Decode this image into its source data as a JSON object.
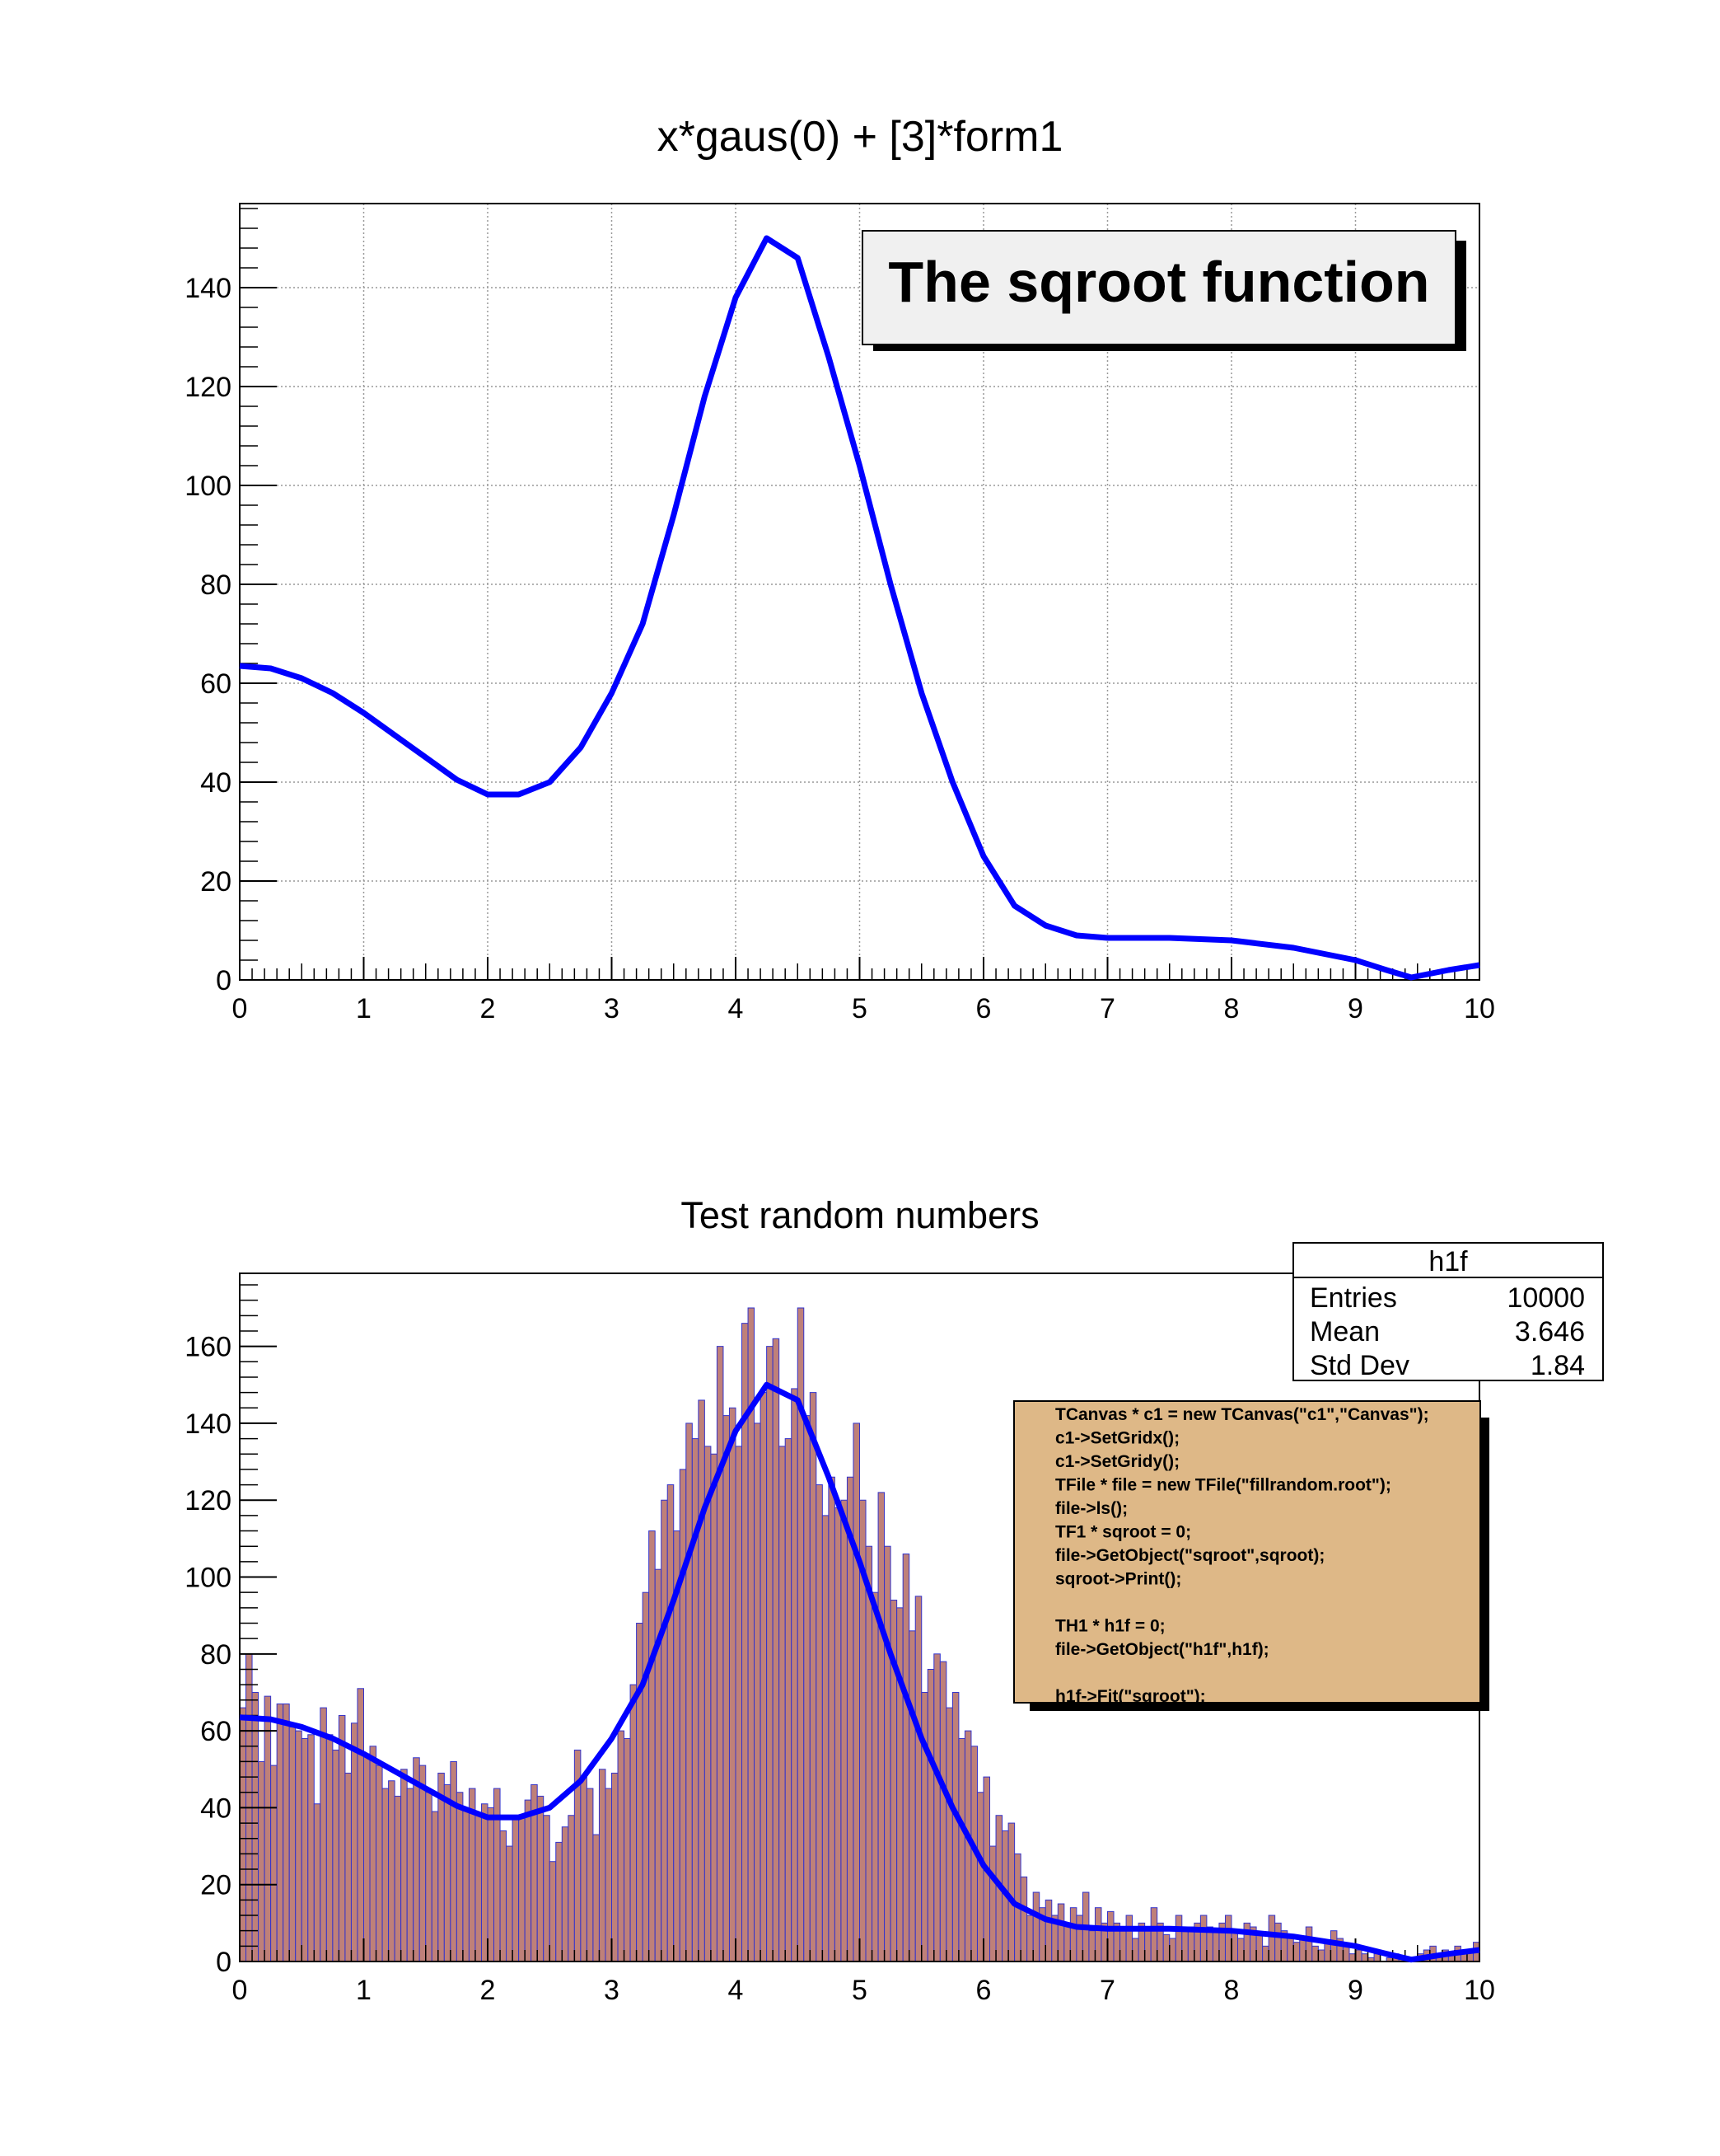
{
  "chart_data": [
    {
      "type": "line",
      "title": "x*gaus(0) + [3]*form1",
      "xlim": [
        0,
        10
      ],
      "ylim": [
        0,
        157
      ],
      "grid": true,
      "xticks": [
        "0",
        "1",
        "2",
        "3",
        "4",
        "5",
        "6",
        "7",
        "8",
        "9",
        "10"
      ],
      "yticks": [
        "0",
        "20",
        "40",
        "60",
        "80",
        "100",
        "120",
        "140"
      ],
      "legend": {
        "text": "The sqroot function",
        "placement": "top-right"
      },
      "series": [
        {
          "name": "sqroot",
          "color": "#0000ff",
          "x": [
            0,
            0.25,
            0.5,
            0.75,
            1,
            1.25,
            1.5,
            1.75,
            2,
            2.25,
            2.5,
            2.75,
            3,
            3.25,
            3.5,
            3.75,
            4,
            4.25,
            4.5,
            4.75,
            5,
            5.25,
            5.5,
            5.75,
            6,
            6.25,
            6.5,
            6.75,
            7,
            7.5,
            8,
            8.5,
            9,
            9.25,
            9.45,
            9.75,
            10
          ],
          "y": [
            63.5,
            63,
            61,
            58,
            54,
            49.5,
            45,
            40.5,
            37.5,
            37.5,
            40,
            47,
            58,
            72,
            94,
            118,
            138,
            150,
            146,
            126,
            104,
            80,
            58,
            40,
            25,
            15,
            11,
            9,
            8.5,
            8.5,
            8,
            6.5,
            4,
            2,
            0.5,
            2,
            3
          ]
        }
      ]
    },
    {
      "type": "bar",
      "title": "Test random numbers",
      "xlim": [
        0,
        10
      ],
      "ylim": [
        0,
        179
      ],
      "grid": false,
      "bin_width": 0.05,
      "fill_color": "#bf8079",
      "line_color": "#3333cc",
      "xticks": [
        "0",
        "1",
        "2",
        "3",
        "4",
        "5",
        "6",
        "7",
        "8",
        "9",
        "10"
      ],
      "yticks": [
        "0",
        "20",
        "40",
        "60",
        "80",
        "100",
        "120",
        "140",
        "160"
      ],
      "values": [
        66,
        80,
        70,
        52,
        69,
        51,
        67,
        67,
        61,
        60,
        58,
        59,
        41,
        66,
        59,
        55,
        64,
        49,
        62,
        71,
        54,
        56,
        51,
        45,
        47,
        43,
        50,
        45,
        53,
        51,
        44,
        39,
        49,
        46,
        52,
        44,
        40,
        45,
        38,
        41,
        40,
        45,
        34,
        30,
        38,
        38,
        42,
        46,
        43,
        38,
        26,
        31,
        35,
        38,
        55,
        48,
        45,
        33,
        50,
        45,
        49,
        60,
        58,
        72,
        88,
        96,
        112,
        102,
        120,
        124,
        112,
        128,
        140,
        136,
        146,
        134,
        132,
        160,
        142,
        144,
        134,
        166,
        170,
        140,
        148,
        160,
        162,
        134,
        136,
        149,
        170,
        142,
        148,
        124,
        116,
        126,
        118,
        120,
        126,
        140,
        120,
        108,
        96,
        122,
        108,
        94,
        92,
        106,
        86,
        95,
        70,
        76,
        80,
        78,
        66,
        70,
        58,
        60,
        56,
        44,
        48,
        30,
        38,
        34,
        36,
        28,
        22,
        12,
        18,
        14,
        16,
        12,
        15,
        10,
        14,
        12,
        18,
        8,
        14,
        10,
        13,
        10,
        9,
        12,
        6,
        10,
        8,
        14,
        10,
        7,
        6,
        12,
        8,
        9,
        10,
        12,
        9,
        8,
        10,
        12,
        8,
        6,
        10,
        9,
        7,
        4,
        12,
        10,
        8,
        7,
        5,
        6,
        9,
        4,
        3,
        5,
        8,
        6,
        4,
        2,
        3,
        2,
        1,
        2,
        0,
        1,
        2,
        1,
        0,
        1,
        2,
        3,
        4,
        2,
        3,
        2,
        4,
        3,
        3,
        5
      ],
      "fit": {
        "name": "sqroot",
        "color": "#0000ff"
      },
      "stats": {
        "name": "h1f",
        "rows": [
          {
            "label": "Entries",
            "value": "10000"
          },
          {
            "label": "Mean",
            "value": "3.646"
          },
          {
            "label": "Std Dev",
            "value": "1.84"
          }
        ]
      },
      "code_box": {
        "fill": "#deb887",
        "lines": [
          "TCanvas * c1 = new TCanvas(\"c1\",\"Canvas\");",
          "c1->SetGridx();",
          "c1->SetGridy();",
          "TFile * file = new TFile(\"fillrandom.root\");",
          "file->ls();",
          "TF1 * sqroot = 0;",
          "file->GetObject(\"sqroot\",sqroot);",
          "sqroot->Print();",
          "",
          "TH1 * h1f = 0;",
          "file->GetObject(\"h1f\",h1f);",
          "",
          "h1f->Fit(\"sqroot\");"
        ]
      }
    }
  ]
}
